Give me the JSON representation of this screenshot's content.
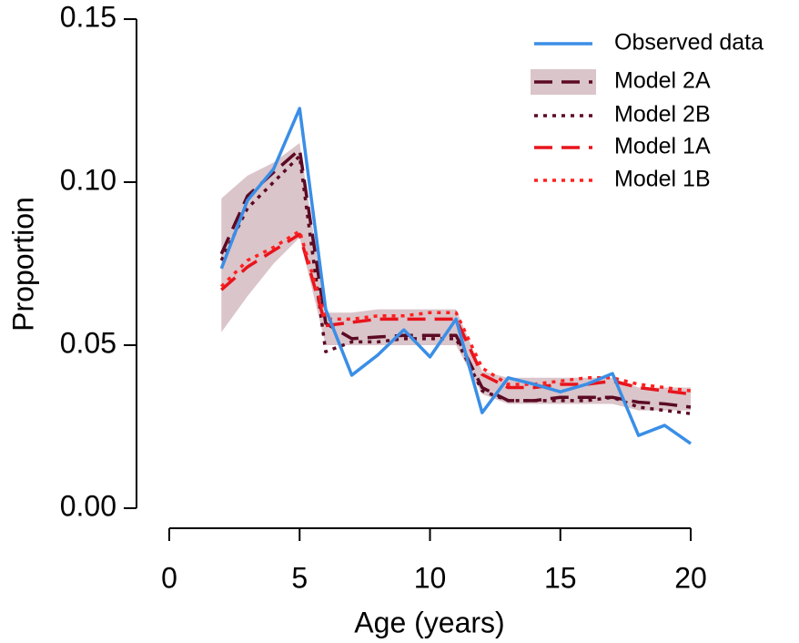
{
  "chart_data": {
    "type": "line",
    "x_label": "Age (years)",
    "y_label": "Proportion",
    "x": [
      2,
      3,
      4,
      5,
      6,
      7,
      8,
      9,
      10,
      11,
      12,
      13,
      14,
      15,
      16,
      17,
      18,
      19,
      20
    ],
    "xlim": [
      0,
      20
    ],
    "xticks": [
      0,
      5,
      10,
      15,
      20
    ],
    "ylim": [
      0,
      0.15
    ],
    "yticks": [
      {
        "value": 0,
        "label": "0.00"
      },
      0.05,
      {
        "value": 0.1,
        "label": "0.10"
      },
      0.15
    ],
    "legend": "top-right",
    "series": [
      {
        "name": "Observed data",
        "color": "#3a8ee6",
        "dash": "solid",
        "values": [
          0.0735,
          0.0944,
          0.104,
          0.1226,
          0.061,
          0.0408,
          0.047,
          0.0547,
          0.0464,
          0.058,
          0.0293,
          0.04,
          0.038,
          0.0357,
          0.038,
          0.0413,
          0.0223,
          0.0254,
          0.0198
        ]
      },
      {
        "name": "Model 2A",
        "color": "#5c0a24",
        "dash": "dashed",
        "values": [
          0.078,
          0.0958,
          0.103,
          0.11,
          0.0567,
          0.052,
          0.0525,
          0.053,
          0.053,
          0.053,
          0.037,
          0.033,
          0.033,
          0.034,
          0.034,
          0.034,
          0.0325,
          0.032,
          0.031
        ],
        "band": {
          "color": "#dac5ca",
          "lower": [
            0.054,
            0.065,
            0.075,
            0.083,
            0.05,
            0.05,
            0.05,
            0.05,
            0.05,
            0.05,
            0.035,
            0.032,
            0.032,
            0.032,
            0.032,
            0.032,
            0.03,
            0.03,
            0.03
          ],
          "upper": [
            0.095,
            0.102,
            0.106,
            0.112,
            0.06,
            0.06,
            0.061,
            0.061,
            0.061,
            0.061,
            0.042,
            0.04,
            0.04,
            0.04,
            0.04,
            0.04,
            0.037,
            0.037,
            0.037
          ]
        }
      },
      {
        "name": "Model 2B",
        "color": "#5c0a24",
        "dash": "dotted",
        "values": [
          0.076,
          0.092,
          0.1,
          0.108,
          0.048,
          0.051,
          0.051,
          0.052,
          0.052,
          0.052,
          0.036,
          0.033,
          0.033,
          0.033,
          0.033,
          0.034,
          0.031,
          0.03,
          0.029
        ]
      },
      {
        "name": "Model 1A",
        "color": "#e8141c",
        "dash": "dashed",
        "values": [
          0.067,
          0.074,
          0.079,
          0.084,
          0.056,
          0.057,
          0.058,
          0.058,
          0.058,
          0.058,
          0.041,
          0.037,
          0.037,
          0.038,
          0.038,
          0.039,
          0.037,
          0.036,
          0.035
        ]
      },
      {
        "name": "Model 1B",
        "color": "#ff2020",
        "dash": "dotted",
        "values": [
          0.068,
          0.076,
          0.08,
          0.085,
          0.058,
          0.058,
          0.059,
          0.059,
          0.06,
          0.06,
          0.043,
          0.038,
          0.038,
          0.039,
          0.04,
          0.04,
          0.038,
          0.037,
          0.036
        ]
      }
    ]
  }
}
